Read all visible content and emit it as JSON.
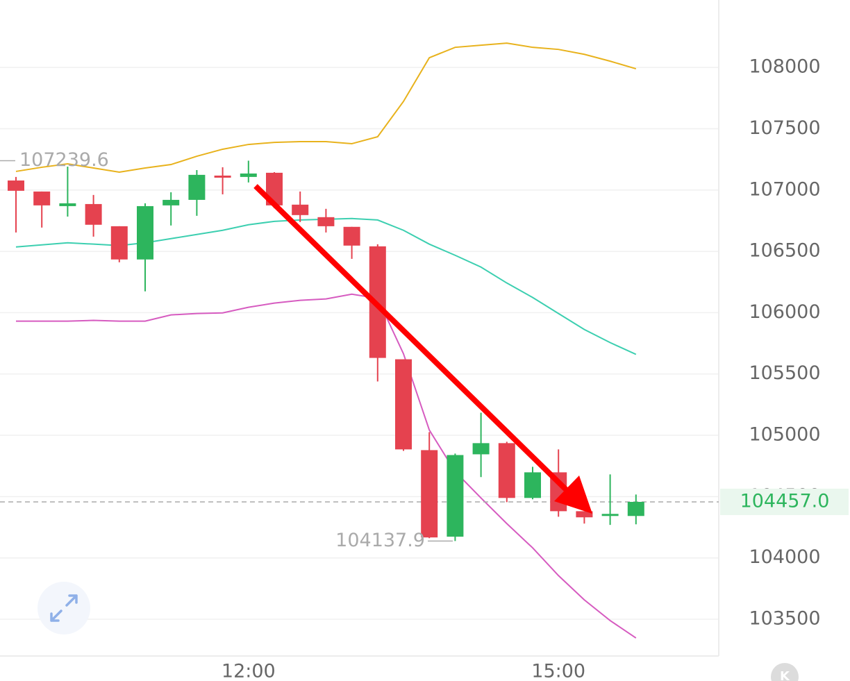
{
  "chart_data": {
    "type": "candlestick",
    "categories": [
      null,
      null,
      null,
      null,
      null,
      null,
      null,
      null,
      null,
      "12:00",
      null,
      null,
      null,
      null,
      null,
      null,
      null,
      null,
      null,
      null,
      null,
      "15:00",
      null,
      null,
      null
    ],
    "open": [
      107078,
      106988,
      106869,
      106886,
      106705,
      106434,
      106875,
      106920,
      107118,
      107107,
      107141,
      106881,
      106779,
      106700,
      106541,
      105620,
      104879,
      104173,
      104845,
      104936,
      104489,
      104698,
      104381,
      104342,
      104342
    ],
    "high": [
      107107,
      106988,
      107191,
      106960,
      106705,
      106892,
      106982,
      107163,
      107186,
      107239.6,
      107146,
      106988,
      106847,
      106700,
      106558,
      105620,
      105026,
      104851,
      105184,
      104947,
      104743,
      104885,
      104381,
      104681,
      104517
    ],
    "low": [
      106654,
      106694,
      106784,
      106620,
      106411,
      106174,
      106711,
      106790,
      106965,
      107062,
      106852,
      106739,
      106654,
      106439,
      105439,
      104873,
      104161,
      104137.9,
      104659,
      104455,
      104478,
      104336,
      104280,
      104269,
      104274
    ],
    "close": [
      106994,
      106875,
      106892,
      106717,
      106434,
      106869,
      106920,
      107124,
      107101,
      107135,
      106875,
      106796,
      106705,
      106547,
      105631,
      104885,
      104167,
      104839,
      104936,
      104489,
      104698,
      104381,
      104331,
      104359,
      104457
    ],
    "up_color": "#2db55d",
    "down_color": "#e5424f",
    "lines": [
      {
        "color": "#e8b21c",
        "values": [
          107152,
          107186,
          107214,
          107180,
          107146,
          107180,
          107208,
          107276,
          107333,
          107372,
          107389,
          107395,
          107395,
          107378,
          107435,
          107723,
          108079,
          108164,
          108181,
          108198,
          108164,
          108147,
          108107,
          108051,
          107989
        ]
      },
      {
        "color": "#3ccfb0",
        "values": [
          106536,
          106553,
          106570,
          106559,
          106547,
          106570,
          106604,
          106638,
          106672,
          106717,
          106745,
          106756,
          106762,
          106768,
          106756,
          106672,
          106559,
          106468,
          106372,
          106242,
          106124,
          105993,
          105863,
          105756,
          105660
        ]
      },
      {
        "color": "#d65bc0",
        "values": [
          105931,
          105931,
          105931,
          105937,
          105931,
          105931,
          105982,
          105993,
          105998,
          106044,
          106078,
          106101,
          106112,
          106151,
          106117,
          105665,
          105043,
          104704,
          104489,
          104280,
          104082,
          103856,
          103658,
          103489,
          103347
        ]
      }
    ],
    "ylim": [
      103200,
      108550
    ],
    "yticks": [
      103500,
      104000,
      104500,
      105000,
      105500,
      106000,
      106500,
      107000,
      107500,
      108000
    ],
    "max_label": 107239.6,
    "min_label": 104137.9,
    "last_price": {
      "value": 104457,
      "label": "104457.0"
    },
    "logo": "K",
    "grid": true
  }
}
